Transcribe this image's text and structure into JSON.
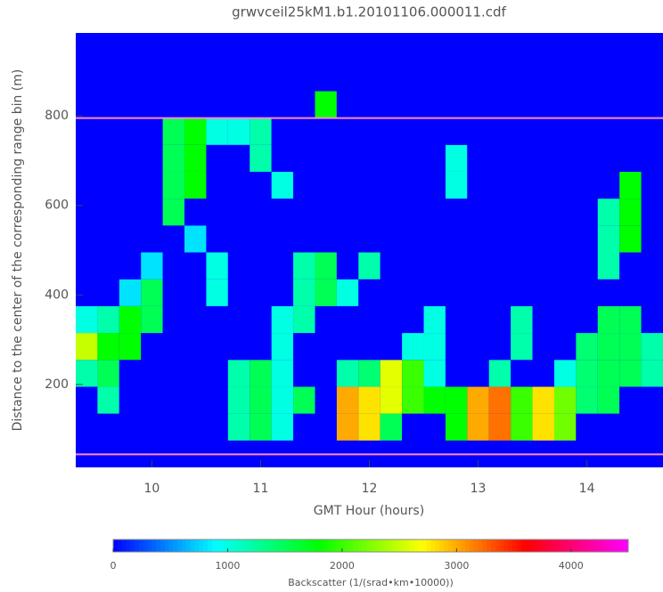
{
  "chart_data": {
    "type": "heatmap",
    "title": "grwvceil25kM1.b1.20101106.000011.cdf",
    "x_label": "GMT Hour (hours)",
    "y_label": "Distance to the center of the corresponding range bin (m)",
    "colorbar_label": "Backscatter (1/(srad•km•10000))",
    "x": [
      9.4,
      9.6,
      9.8,
      10.0,
      10.2,
      10.4,
      10.6,
      10.8,
      11.0,
      11.2,
      11.4,
      11.6,
      11.8,
      12.0,
      12.2,
      12.4,
      12.6,
      12.8,
      13.0,
      13.2,
      13.4,
      13.6,
      13.8,
      14.0,
      14.2,
      14.4,
      14.6
    ],
    "y": [
      45,
      105,
      165,
      225,
      285,
      345,
      405,
      465,
      525,
      585,
      645,
      705,
      765,
      825,
      885,
      945
    ],
    "z": [
      [
        0,
        0,
        0,
        1200,
        2500,
        1000,
        0,
        0,
        0,
        0,
        0,
        0,
        0,
        0,
        0,
        0
      ],
      [
        0,
        0,
        1200,
        1500,
        1800,
        1200,
        0,
        0,
        0,
        0,
        0,
        0,
        0,
        0,
        0,
        0
      ],
      [
        0,
        0,
        0,
        0,
        1800,
        1800,
        800,
        0,
        0,
        0,
        0,
        0,
        0,
        0,
        0,
        0
      ],
      [
        0,
        0,
        0,
        0,
        0,
        1500,
        1500,
        800,
        0,
        0,
        0,
        0,
        0,
        0,
        0,
        0
      ],
      [
        0,
        0,
        0,
        0,
        0,
        0,
        0,
        0,
        0,
        1500,
        1500,
        1500,
        1500,
        0,
        0,
        0
      ],
      [
        0,
        0,
        0,
        0,
        0,
        0,
        0,
        0,
        800,
        0,
        1800,
        1800,
        1800,
        0,
        0,
        0
      ],
      [
        0,
        0,
        0,
        0,
        0,
        0,
        1000,
        1000,
        0,
        0,
        0,
        0,
        1000,
        0,
        0,
        0
      ],
      [
        0,
        1200,
        1200,
        1200,
        0,
        0,
        0,
        0,
        0,
        0,
        0,
        0,
        1000,
        0,
        0,
        0
      ],
      [
        0,
        1500,
        1500,
        1500,
        0,
        0,
        0,
        0,
        0,
        0,
        0,
        1200,
        1200,
        0,
        0,
        0
      ],
      [
        0,
        1000,
        1000,
        1000,
        1000,
        1000,
        0,
        0,
        0,
        0,
        1000,
        0,
        0,
        0,
        0,
        0
      ],
      [
        0,
        0,
        1500,
        0,
        0,
        1200,
        1200,
        1200,
        0,
        0,
        0,
        0,
        0,
        0,
        0,
        0
      ],
      [
        0,
        0,
        0,
        0,
        0,
        0,
        1500,
        1500,
        0,
        0,
        0,
        0,
        0,
        1800,
        0,
        0
      ],
      [
        0,
        3000,
        3000,
        1200,
        0,
        0,
        1000,
        0,
        0,
        0,
        0,
        0,
        0,
        0,
        0,
        0
      ],
      [
        0,
        2800,
        2800,
        1400,
        0,
        0,
        0,
        1200,
        0,
        0,
        0,
        0,
        0,
        0,
        0,
        0
      ],
      [
        0,
        1500,
        2600,
        2600,
        0,
        0,
        0,
        0,
        0,
        0,
        0,
        0,
        0,
        0,
        0,
        0
      ],
      [
        0,
        0,
        2000,
        2000,
        1000,
        0,
        0,
        0,
        0,
        0,
        0,
        0,
        0,
        0,
        0,
        0
      ],
      [
        0,
        0,
        1800,
        1000,
        1000,
        1000,
        0,
        0,
        0,
        0,
        0,
        0,
        0,
        0,
        0,
        0
      ],
      [
        0,
        1800,
        1800,
        0,
        0,
        0,
        0,
        0,
        0,
        0,
        1000,
        1000,
        0,
        0,
        0,
        0
      ],
      [
        0,
        3000,
        3000,
        0,
        0,
        0,
        0,
        0,
        0,
        0,
        0,
        0,
        0,
        0,
        0,
        0
      ],
      [
        0,
        3200,
        3200,
        1200,
        0,
        0,
        0,
        0,
        0,
        0,
        0,
        0,
        0,
        0,
        0,
        0
      ],
      [
        0,
        2000,
        2000,
        0,
        1200,
        1200,
        0,
        0,
        0,
        0,
        0,
        0,
        0,
        0,
        0,
        0
      ],
      [
        0,
        2800,
        2800,
        0,
        0,
        0,
        0,
        0,
        0,
        0,
        0,
        0,
        0,
        0,
        0,
        0
      ],
      [
        0,
        2200,
        2200,
        1000,
        0,
        0,
        0,
        0,
        0,
        0,
        0,
        0,
        0,
        0,
        0,
        0
      ],
      [
        0,
        0,
        1400,
        1400,
        1400,
        0,
        0,
        0,
        0,
        0,
        0,
        0,
        0,
        0,
        0,
        0
      ],
      [
        0,
        0,
        1500,
        1500,
        1500,
        1500,
        0,
        1200,
        1200,
        1200,
        0,
        0,
        0,
        0,
        0,
        0
      ],
      [
        0,
        0,
        0,
        1500,
        1500,
        1500,
        0,
        0,
        1800,
        1800,
        1800,
        0,
        0,
        0,
        0,
        0
      ],
      [
        0,
        0,
        0,
        1200,
        1200,
        0,
        0,
        0,
        0,
        0,
        0,
        0,
        0,
        0,
        0,
        0
      ]
    ],
    "xlim": [
      9.3,
      14.7
    ],
    "ylim": [
      15,
      985
    ],
    "xticks": [
      10,
      11,
      12,
      13,
      14
    ],
    "yticks": [
      200,
      400,
      600,
      800
    ],
    "clim": [
      0,
      4500
    ],
    "cticks": [
      0,
      1000,
      2000,
      3000,
      4000
    ],
    "colormap": [
      "#0000ff",
      "#00ffff",
      "#00ff00",
      "#ffff00",
      "#ff0000",
      "#ff00ff"
    ],
    "hlines": [
      795,
      44
    ],
    "hline_color": "#ff88cc"
  }
}
